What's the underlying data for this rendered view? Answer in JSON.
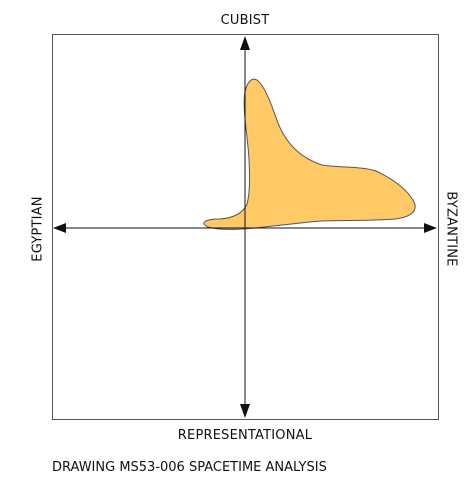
{
  "diagram": {
    "axis_labels": {
      "top": "CUBIST",
      "bottom": "REPRESENTATIONAL",
      "left": "EGYPTIAN",
      "right": "BYZANTINE"
    },
    "caption": "DRAWING MS53-006 SPACETIME ANALYSIS",
    "colors": {
      "frame": "#555555",
      "axes": "#111111",
      "region_fill": "#FFC966",
      "region_stroke": "#555555"
    }
  }
}
